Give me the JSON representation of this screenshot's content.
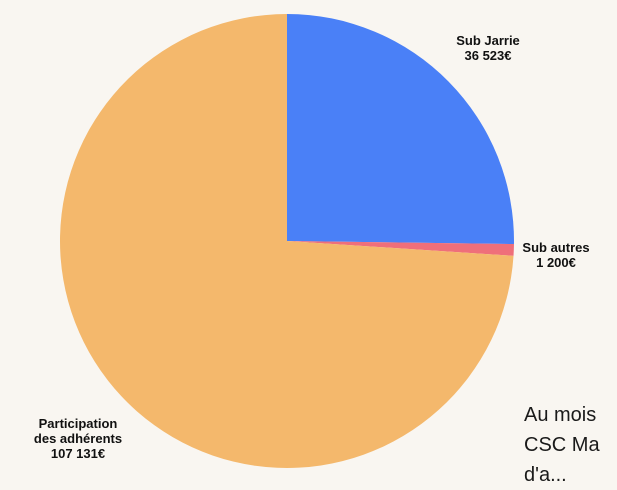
{
  "chart_data": {
    "type": "pie",
    "categories": [
      "Sub Jarrie",
      "Sub autres",
      "Participation des adhérents"
    ],
    "values": [
      36523,
      1200,
      107131
    ],
    "value_labels": [
      "36 523€",
      "1 200€",
      "107 131€"
    ],
    "label_lines": [
      [
        "Sub Jarrie",
        "36 523€"
      ],
      [
        "Sub autres",
        "1 200€"
      ],
      [
        "Participation",
        "des adhérents",
        "107 131€"
      ]
    ],
    "colors": [
      "#4a80f7",
      "#ef6f7a",
      "#f4b86c"
    ],
    "start_angle_deg": 0,
    "direction": "clockwise",
    "legend": "none"
  },
  "side_text": {
    "line1": "Au mois",
    "line2": "CSC Ma",
    "line3": "d'a..."
  }
}
